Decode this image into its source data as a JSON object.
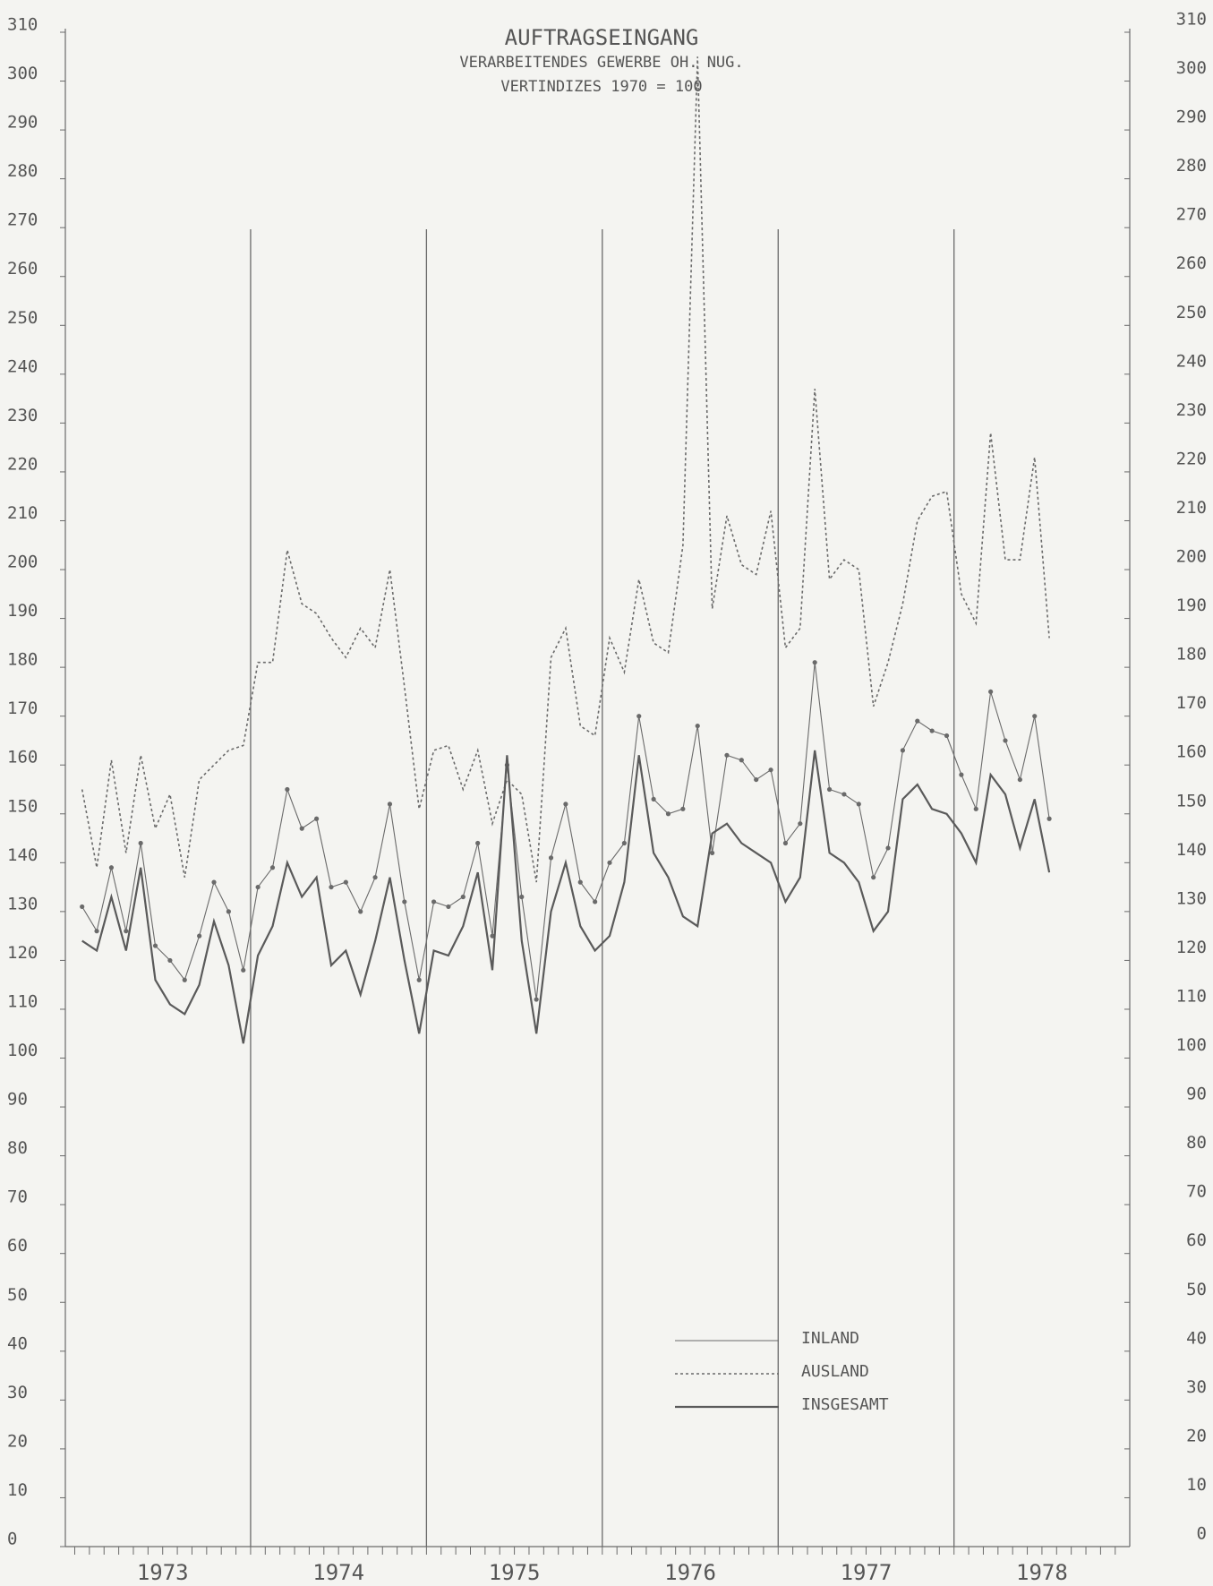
{
  "chart_data": {
    "type": "line",
    "title": "AUFTRAGSEINGANG",
    "subtitle": "VERARBEITENDES GEWERBE OH. NUG.",
    "subtitle2": "VERTINDIZES 1970 = 100",
    "categories": [
      null,
      null,
      null,
      null,
      null,
      "1973",
      null,
      null,
      null,
      null,
      null,
      null,
      null,
      null,
      null,
      null,
      null,
      "1974",
      null,
      null,
      null,
      null,
      null,
      null,
      null,
      null,
      null,
      null,
      null,
      "1975",
      null,
      null,
      null,
      null,
      null,
      null,
      null,
      null,
      null,
      null,
      null,
      "1976",
      null,
      null,
      null,
      null,
      null,
      null,
      null,
      null,
      null,
      null,
      null,
      "1977",
      null,
      null,
      null,
      null,
      null,
      null,
      null,
      null,
      null,
      null,
      null,
      "1978",
      null
    ],
    "series": [
      {
        "name": "INLAND",
        "color": "#6a6a6a",
        "style": "solid-dots",
        "values": [
          131,
          126,
          139,
          126,
          144,
          123,
          120,
          116,
          125,
          136,
          130,
          118,
          135,
          139,
          155,
          147,
          149,
          135,
          136,
          130,
          137,
          152,
          132,
          116,
          132,
          131,
          133,
          144,
          125,
          160,
          133,
          112,
          141,
          152,
          136,
          132,
          140,
          144,
          170,
          153,
          150,
          151,
          168,
          142,
          162,
          161,
          157,
          159,
          144,
          148,
          181,
          155,
          154,
          152,
          137,
          143,
          163,
          169,
          167,
          166,
          158,
          151,
          175,
          165,
          157,
          170,
          149
        ]
      },
      {
        "name": "AUSLAND",
        "color": "#6a6a6a",
        "style": "dotted",
        "values": [
          155,
          139,
          161,
          142,
          162,
          147,
          154,
          137,
          157,
          160,
          163,
          164,
          181,
          181,
          204,
          193,
          191,
          186,
          182,
          188,
          184,
          200,
          176,
          151,
          163,
          164,
          155,
          163,
          148,
          157,
          154,
          136,
          182,
          188,
          168,
          166,
          186,
          179,
          198,
          185,
          183,
          205,
          305,
          192,
          211,
          201,
          199,
          212,
          184,
          188,
          237,
          198,
          202,
          200,
          172,
          181,
          193,
          210,
          215,
          216,
          195,
          189,
          228,
          202,
          202,
          223,
          186
        ]
      },
      {
        "name": "INSGESAMT",
        "color": "#5a5a5a",
        "style": "thick",
        "values": [
          124,
          122,
          133,
          122,
          139,
          116,
          111,
          109,
          115,
          128,
          119,
          103,
          121,
          127,
          140,
          133,
          137,
          119,
          122,
          113,
          124,
          137,
          120,
          105,
          122,
          121,
          127,
          138,
          118,
          162,
          124,
          105,
          130,
          140,
          127,
          122,
          125,
          136,
          162,
          142,
          137,
          129,
          127,
          146,
          148,
          144,
          142,
          140,
          132,
          137,
          163,
          142,
          140,
          136,
          126,
          130,
          153,
          156,
          151,
          150,
          146,
          140,
          158,
          154,
          143,
          153,
          138
        ]
      }
    ],
    "ylim": [
      0,
      310
    ],
    "yticks": [
      0,
      10,
      20,
      30,
      40,
      50,
      60,
      70,
      80,
      90,
      100,
      110,
      120,
      130,
      140,
      150,
      160,
      170,
      180,
      190,
      200,
      210,
      220,
      230,
      240,
      250,
      260,
      270,
      280,
      290,
      300,
      310
    ],
    "y2lim": [
      0,
      310
    ],
    "y2ticks": [
      0,
      10,
      20,
      30,
      40,
      50,
      60,
      70,
      80,
      90,
      100,
      110,
      120,
      130,
      140,
      150,
      160,
      170,
      180,
      190,
      200,
      210,
      220,
      230,
      240,
      250,
      260,
      270,
      280,
      290,
      300,
      310
    ],
    "legend": "lower-center"
  }
}
